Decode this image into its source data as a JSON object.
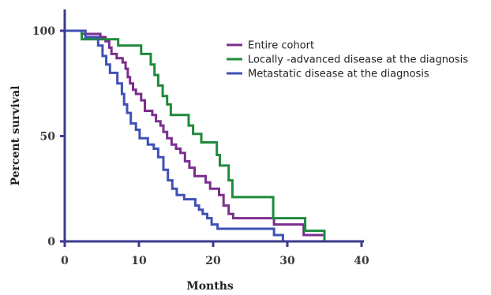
{
  "chart_data": {
    "type": "line",
    "subtype": "kaplan-meier step curves",
    "title": "",
    "xlabel": "Months",
    "ylabel": "Percent survival",
    "xlim": [
      0,
      40
    ],
    "ylim": [
      0,
      100
    ],
    "x_ticks": [
      "0",
      "10",
      "20",
      "30",
      "40"
    ],
    "y_ticks": [
      "0",
      "50",
      "100"
    ],
    "grid": false,
    "legend_position": "top-right",
    "axis_color": "#3b3b8f",
    "series": [
      {
        "name": "Entire cohort",
        "color": "#7b2e8e",
        "points": [
          [
            0,
            100
          ],
          [
            2.3,
            100
          ],
          [
            2.3,
            98.5
          ],
          [
            4.8,
            98.5
          ],
          [
            4.8,
            97
          ],
          [
            5.5,
            97
          ],
          [
            5.5,
            95
          ],
          [
            6,
            95
          ],
          [
            6,
            92
          ],
          [
            6.3,
            92
          ],
          [
            6.3,
            89
          ],
          [
            7,
            89
          ],
          [
            7,
            87
          ],
          [
            7.8,
            87
          ],
          [
            7.8,
            85
          ],
          [
            8.2,
            85
          ],
          [
            8.2,
            82
          ],
          [
            8.5,
            82
          ],
          [
            8.5,
            78
          ],
          [
            8.8,
            78
          ],
          [
            8.8,
            75
          ],
          [
            9.2,
            75
          ],
          [
            9.2,
            72
          ],
          [
            9.6,
            72
          ],
          [
            9.6,
            70
          ],
          [
            10.3,
            70
          ],
          [
            10.3,
            67
          ],
          [
            10.8,
            67
          ],
          [
            10.8,
            62
          ],
          [
            11.8,
            62
          ],
          [
            11.8,
            60
          ],
          [
            12.3,
            60
          ],
          [
            12.3,
            57
          ],
          [
            12.9,
            57
          ],
          [
            12.9,
            55
          ],
          [
            13.3,
            55
          ],
          [
            13.3,
            52
          ],
          [
            13.8,
            52
          ],
          [
            13.8,
            49
          ],
          [
            14.4,
            49
          ],
          [
            14.4,
            46
          ],
          [
            15,
            46
          ],
          [
            15,
            44
          ],
          [
            15.6,
            44
          ],
          [
            15.6,
            42
          ],
          [
            16.2,
            42
          ],
          [
            16.2,
            38
          ],
          [
            16.8,
            38
          ],
          [
            16.8,
            35
          ],
          [
            17.5,
            35
          ],
          [
            17.5,
            31
          ],
          [
            19,
            31
          ],
          [
            19,
            28
          ],
          [
            19.6,
            28
          ],
          [
            19.6,
            25
          ],
          [
            20.8,
            25
          ],
          [
            20.8,
            22
          ],
          [
            21.4,
            22
          ],
          [
            21.4,
            17
          ],
          [
            22.1,
            17
          ],
          [
            22.1,
            13
          ],
          [
            22.7,
            13
          ],
          [
            22.7,
            11
          ],
          [
            28.2,
            11
          ],
          [
            28.2,
            8
          ],
          [
            32.2,
            8
          ],
          [
            32.2,
            3
          ],
          [
            35,
            3
          ],
          [
            35,
            0
          ]
        ]
      },
      {
        "name": "Locally -advanced  disease at the diagnosis",
        "color": "#1f8a3c",
        "points": [
          [
            0,
            100
          ],
          [
            2.3,
            100
          ],
          [
            2.3,
            96
          ],
          [
            7.2,
            96
          ],
          [
            7.2,
            93
          ],
          [
            10.3,
            93
          ],
          [
            10.3,
            89
          ],
          [
            11.6,
            89
          ],
          [
            11.6,
            84
          ],
          [
            12.1,
            84
          ],
          [
            12.1,
            79
          ],
          [
            12.6,
            79
          ],
          [
            12.6,
            74
          ],
          [
            13.2,
            74
          ],
          [
            13.2,
            69
          ],
          [
            13.8,
            69
          ],
          [
            13.8,
            65
          ],
          [
            14.3,
            65
          ],
          [
            14.3,
            60
          ],
          [
            16.7,
            60
          ],
          [
            16.7,
            55
          ],
          [
            17.3,
            55
          ],
          [
            17.3,
            51
          ],
          [
            18.4,
            51
          ],
          [
            18.4,
            47
          ],
          [
            20.5,
            47
          ],
          [
            20.5,
            41
          ],
          [
            20.9,
            41
          ],
          [
            20.9,
            36
          ],
          [
            22.1,
            36
          ],
          [
            22.1,
            29
          ],
          [
            22.6,
            29
          ],
          [
            22.6,
            21
          ],
          [
            28.1,
            21
          ],
          [
            28.1,
            11
          ],
          [
            32.4,
            11
          ],
          [
            32.4,
            5
          ],
          [
            35,
            5
          ],
          [
            35,
            0
          ]
        ]
      },
      {
        "name": "Metastatic disease at the diagnosis",
        "color": "#3f51b5",
        "points": [
          [
            0,
            100
          ],
          [
            2.8,
            100
          ],
          [
            2.8,
            97
          ],
          [
            4.5,
            97
          ],
          [
            4.5,
            93
          ],
          [
            5.1,
            93
          ],
          [
            5.1,
            88
          ],
          [
            5.6,
            88
          ],
          [
            5.6,
            84
          ],
          [
            6.1,
            84
          ],
          [
            6.1,
            80
          ],
          [
            7.1,
            80
          ],
          [
            7.1,
            75
          ],
          [
            7.7,
            75
          ],
          [
            7.7,
            70
          ],
          [
            8,
            70
          ],
          [
            8,
            65
          ],
          [
            8.4,
            65
          ],
          [
            8.4,
            61
          ],
          [
            8.9,
            61
          ],
          [
            8.9,
            56
          ],
          [
            9.6,
            56
          ],
          [
            9.6,
            53
          ],
          [
            10.1,
            53
          ],
          [
            10.1,
            49
          ],
          [
            11.2,
            49
          ],
          [
            11.2,
            46
          ],
          [
            12,
            46
          ],
          [
            12,
            44
          ],
          [
            12.6,
            44
          ],
          [
            12.6,
            40
          ],
          [
            13.3,
            40
          ],
          [
            13.3,
            34
          ],
          [
            13.9,
            34
          ],
          [
            13.9,
            29
          ],
          [
            14.5,
            29
          ],
          [
            14.5,
            25
          ],
          [
            15.1,
            25
          ],
          [
            15.1,
            22
          ],
          [
            16.1,
            22
          ],
          [
            16.1,
            20
          ],
          [
            17.6,
            20
          ],
          [
            17.6,
            17
          ],
          [
            18.1,
            17
          ],
          [
            18.1,
            15
          ],
          [
            18.6,
            15
          ],
          [
            18.6,
            13
          ],
          [
            19.2,
            13
          ],
          [
            19.2,
            11
          ],
          [
            19.8,
            11
          ],
          [
            19.8,
            8
          ],
          [
            20.6,
            8
          ],
          [
            20.6,
            6
          ],
          [
            28.2,
            6
          ],
          [
            28.2,
            3
          ],
          [
            29.4,
            3
          ],
          [
            29.4,
            0
          ]
        ]
      }
    ]
  }
}
